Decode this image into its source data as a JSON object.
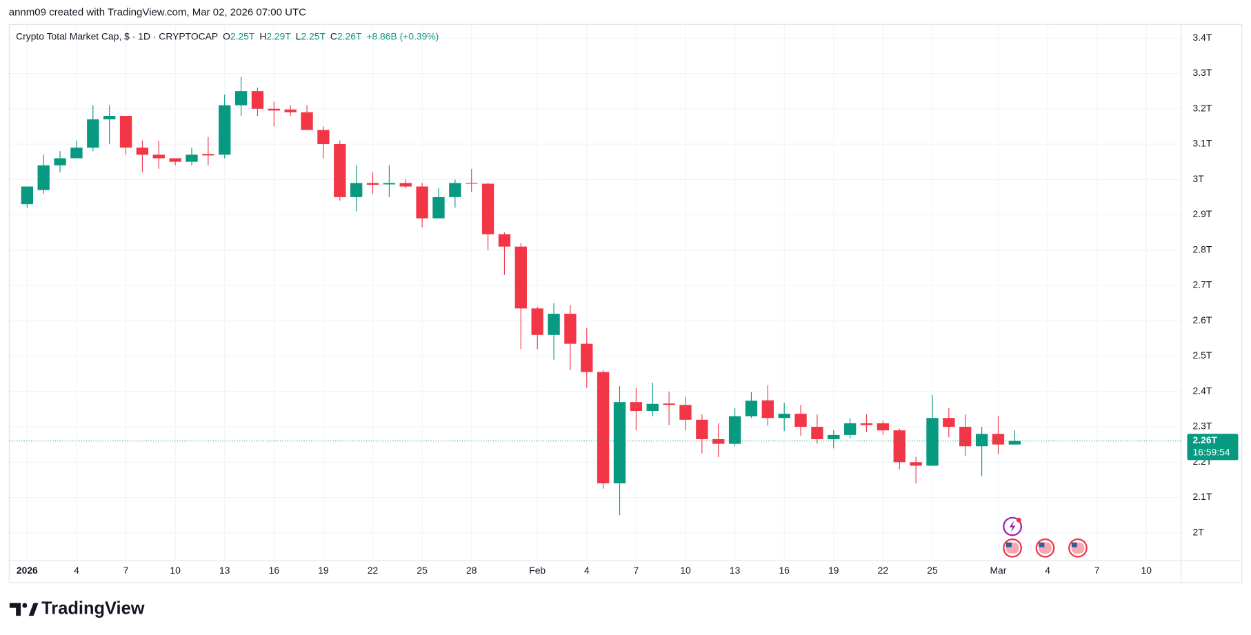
{
  "header": "annm09 created with TradingView.com, Mar 02, 2026 07:00 UTC",
  "chart_data": {
    "type": "candlestick",
    "title": "Crypto Total Market Cap, $ · 1D · CRYPTOCAP",
    "legend": {
      "open_label": "O",
      "open": "2.25T",
      "high_label": "H",
      "high": "2.29T",
      "low_label": "L",
      "low": "2.25T",
      "close_label": "C",
      "close": "2.26T",
      "change": "+8.86B (+0.39%)"
    },
    "price_label": "2.26T",
    "countdown": "16:59:54",
    "up_color": "#089981",
    "down_color": "#f23645",
    "grid": true,
    "x": [
      "2026-01-01",
      "2026-01-02",
      "2026-01-03",
      "2026-01-04",
      "2026-01-05",
      "2026-01-06",
      "2026-01-07",
      "2026-01-08",
      "2026-01-09",
      "2026-01-10",
      "2026-01-11",
      "2026-01-12",
      "2026-01-13",
      "2026-01-14",
      "2026-01-15",
      "2026-01-16",
      "2026-01-17",
      "2026-01-18",
      "2026-01-19",
      "2026-01-20",
      "2026-01-21",
      "2026-01-22",
      "2026-01-23",
      "2026-01-24",
      "2026-01-25",
      "2026-01-26",
      "2026-01-27",
      "2026-01-28",
      "2026-01-29",
      "2026-01-30",
      "2026-01-31",
      "2026-02-01",
      "2026-02-02",
      "2026-02-03",
      "2026-02-04",
      "2026-02-05",
      "2026-02-06",
      "2026-02-07",
      "2026-02-08",
      "2026-02-09",
      "2026-02-10",
      "2026-02-11",
      "2026-02-12",
      "2026-02-13",
      "2026-02-14",
      "2026-02-15",
      "2026-02-16",
      "2026-02-17",
      "2026-02-18",
      "2026-02-19",
      "2026-02-20",
      "2026-02-21",
      "2026-02-22",
      "2026-02-23",
      "2026-02-24",
      "2026-02-25",
      "2026-02-26",
      "2026-02-27",
      "2026-02-28",
      "2026-03-01",
      "2026-03-02"
    ],
    "open": [
      2.93,
      2.97,
      3.04,
      3.06,
      3.09,
      3.17,
      3.18,
      3.09,
      3.07,
      3.06,
      3.05,
      3.072,
      3.07,
      3.21,
      3.25,
      3.2,
      3.198,
      3.19,
      3.14,
      3.1,
      2.95,
      2.99,
      2.986,
      2.99,
      2.98,
      2.89,
      2.95,
      2.99,
      2.988,
      2.845,
      2.81,
      2.635,
      2.56,
      2.62,
      2.535,
      2.455,
      2.14,
      2.37,
      2.345,
      2.366,
      2.362,
      2.32,
      2.265,
      2.252,
      2.33,
      2.375,
      2.325,
      2.337,
      2.3,
      2.265,
      2.277,
      2.31,
      2.31,
      2.29,
      2.2,
      2.19,
      2.325,
      2.3,
      2.245,
      2.28,
      2.25
    ],
    "high": [
      2.98,
      3.07,
      3.08,
      3.11,
      3.21,
      3.21,
      3.18,
      3.11,
      3.11,
      3.06,
      3.09,
      3.12,
      3.24,
      3.29,
      3.26,
      3.22,
      3.21,
      3.21,
      3.15,
      3.11,
      3.04,
      3.02,
      3.04,
      3.0,
      2.99,
      2.975,
      3.0,
      3.03,
      2.99,
      2.85,
      2.82,
      2.64,
      2.65,
      2.645,
      2.58,
      2.46,
      2.415,
      2.41,
      2.425,
      2.4,
      2.385,
      2.335,
      2.31,
      2.353,
      2.398,
      2.418,
      2.368,
      2.362,
      2.335,
      2.29,
      2.324,
      2.335,
      2.317,
      2.295,
      2.215,
      2.39,
      2.353,
      2.335,
      2.3,
      2.33,
      2.29
    ],
    "low": [
      2.92,
      2.96,
      3.02,
      3.06,
      3.08,
      3.1,
      3.07,
      3.02,
      3.03,
      3.04,
      3.04,
      3.04,
      3.06,
      3.18,
      3.18,
      3.15,
      3.18,
      3.14,
      3.06,
      2.94,
      2.91,
      2.96,
      2.95,
      2.975,
      2.865,
      2.89,
      2.92,
      2.965,
      2.8,
      2.73,
      2.52,
      2.52,
      2.49,
      2.46,
      2.41,
      2.125,
      2.05,
      2.29,
      2.33,
      2.305,
      2.29,
      2.225,
      2.214,
      2.245,
      2.325,
      2.303,
      2.288,
      2.275,
      2.252,
      2.239,
      2.268,
      2.285,
      2.277,
      2.18,
      2.14,
      2.19,
      2.27,
      2.218,
      2.16,
      2.223,
      2.25
    ],
    "close": [
      2.98,
      3.04,
      3.06,
      3.09,
      3.17,
      3.18,
      3.09,
      3.07,
      3.06,
      3.05,
      3.07,
      3.068,
      3.21,
      3.25,
      3.2,
      3.195,
      3.19,
      3.14,
      3.1,
      2.95,
      2.99,
      2.985,
      2.99,
      2.98,
      2.89,
      2.95,
      2.99,
      2.988,
      2.845,
      2.81,
      2.635,
      2.56,
      2.62,
      2.535,
      2.455,
      2.14,
      2.37,
      2.345,
      2.365,
      2.362,
      2.32,
      2.265,
      2.252,
      2.33,
      2.374,
      2.325,
      2.337,
      2.3,
      2.265,
      2.277,
      2.31,
      2.305,
      2.29,
      2.2,
      2.19,
      2.325,
      2.3,
      2.245,
      2.28,
      2.25,
      2.26
    ],
    "ylim": [
      1.86,
      3.44
    ],
    "yticks": [
      {
        "value": 2,
        "label": "2T"
      },
      {
        "value": 2.1,
        "label": "2.1T"
      },
      {
        "value": 2.2,
        "label": "2.2T"
      },
      {
        "value": 2.3,
        "label": "2.3T"
      },
      {
        "value": 2.4,
        "label": "2.4T"
      },
      {
        "value": 2.5,
        "label": "2.5T"
      },
      {
        "value": 2.6,
        "label": "2.6T"
      },
      {
        "value": 2.7,
        "label": "2.7T"
      },
      {
        "value": 2.8,
        "label": "2.8T"
      },
      {
        "value": 2.9,
        "label": "2.9T"
      },
      {
        "value": 3,
        "label": "3T"
      },
      {
        "value": 3.1,
        "label": "3.1T"
      },
      {
        "value": 3.2,
        "label": "3.2T"
      },
      {
        "value": 3.3,
        "label": "3.3T"
      },
      {
        "value": 3.4,
        "label": "3.4T"
      }
    ],
    "xticks": [
      {
        "value": "2026-01-01",
        "label": "2026"
      },
      {
        "value": "2026-01-04",
        "label": "4"
      },
      {
        "value": "2026-01-07",
        "label": "7"
      },
      {
        "value": "2026-01-10",
        "label": "10"
      },
      {
        "value": "2026-01-13",
        "label": "13"
      },
      {
        "value": "2026-01-16",
        "label": "16"
      },
      {
        "value": "2026-01-19",
        "label": "19"
      },
      {
        "value": "2026-01-22",
        "label": "22"
      },
      {
        "value": "2026-01-25",
        "label": "25"
      },
      {
        "value": "2026-01-28",
        "label": "28"
      },
      {
        "value": "2026-02-01",
        "label": "Feb"
      },
      {
        "value": "2026-02-04",
        "label": "4"
      },
      {
        "value": "2026-02-07",
        "label": "7"
      },
      {
        "value": "2026-02-10",
        "label": "10"
      },
      {
        "value": "2026-02-13",
        "label": "13"
      },
      {
        "value": "2026-02-16",
        "label": "16"
      },
      {
        "value": "2026-02-19",
        "label": "19"
      },
      {
        "value": "2026-02-22",
        "label": "22"
      },
      {
        "value": "2026-02-25",
        "label": "25"
      },
      {
        "value": "2026-03-01",
        "label": "Mar"
      },
      {
        "value": "2026-03-04",
        "label": "4"
      },
      {
        "value": "2026-03-07",
        "label": "7"
      },
      {
        "value": "2026-03-10",
        "label": "10"
      }
    ]
  },
  "footer": {
    "brand": "TradingView"
  }
}
